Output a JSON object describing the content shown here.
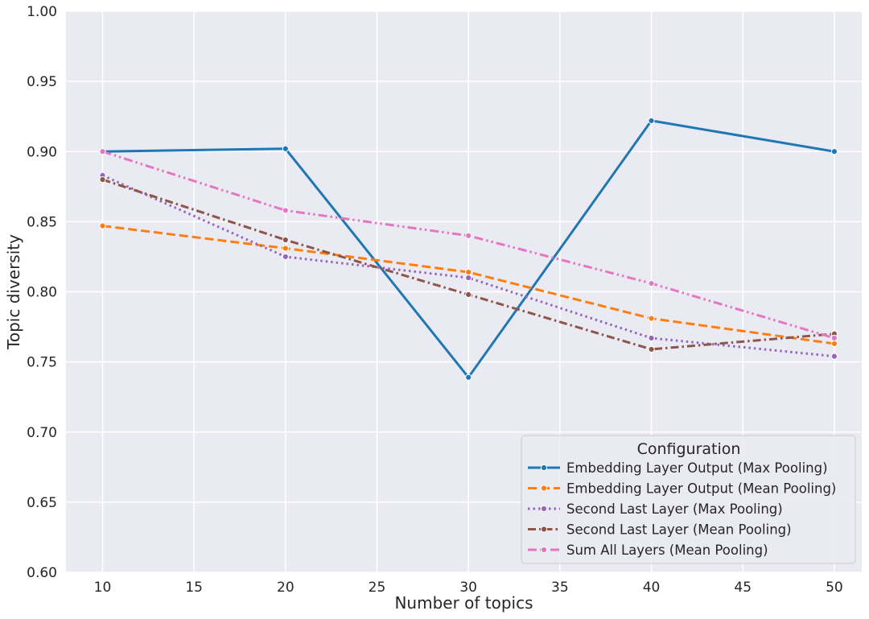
{
  "chart_data": {
    "type": "line",
    "title": "",
    "xlabel": "Number of topics",
    "ylabel": "Topic diversity",
    "x": [
      10,
      20,
      30,
      40,
      50
    ],
    "xlim": [
      8,
      51.5
    ],
    "ylim": [
      0.6,
      1.0
    ],
    "xticks": [
      "10",
      "15",
      "20",
      "25",
      "30",
      "35",
      "40",
      "45",
      "50"
    ],
    "yticks": [
      "0.60",
      "0.65",
      "0.70",
      "0.75",
      "0.80",
      "0.85",
      "0.90",
      "0.95",
      "1.00"
    ],
    "grid": true,
    "legend": {
      "title": "Configuration",
      "placement": "bottom-right"
    },
    "series": [
      {
        "name": "Embedding Layer Output (Max Pooling)",
        "values": [
          0.9,
          0.902,
          0.739,
          0.922,
          0.9
        ],
        "color": "#1f77b4",
        "dash": "solid"
      },
      {
        "name": "Embedding Layer Output (Mean Pooling)",
        "values": [
          0.847,
          0.831,
          0.814,
          0.781,
          0.763
        ],
        "color": "#ff7f0e",
        "dash": "dashed"
      },
      {
        "name": "Second Last Layer (Max Pooling)",
        "values": [
          0.883,
          0.825,
          0.81,
          0.767,
          0.754
        ],
        "color": "#9467bd",
        "dash": "dotted"
      },
      {
        "name": "Second Last Layer (Mean Pooling)",
        "values": [
          0.88,
          0.837,
          0.798,
          0.759,
          0.77
        ],
        "color": "#8c564b",
        "dash": "dashdot"
      },
      {
        "name": "Sum All Layers (Mean Pooling)",
        "values": [
          0.9,
          0.858,
          0.84,
          0.806,
          0.767
        ],
        "color": "#e377c2",
        "dash": "dashdotdot"
      }
    ]
  }
}
